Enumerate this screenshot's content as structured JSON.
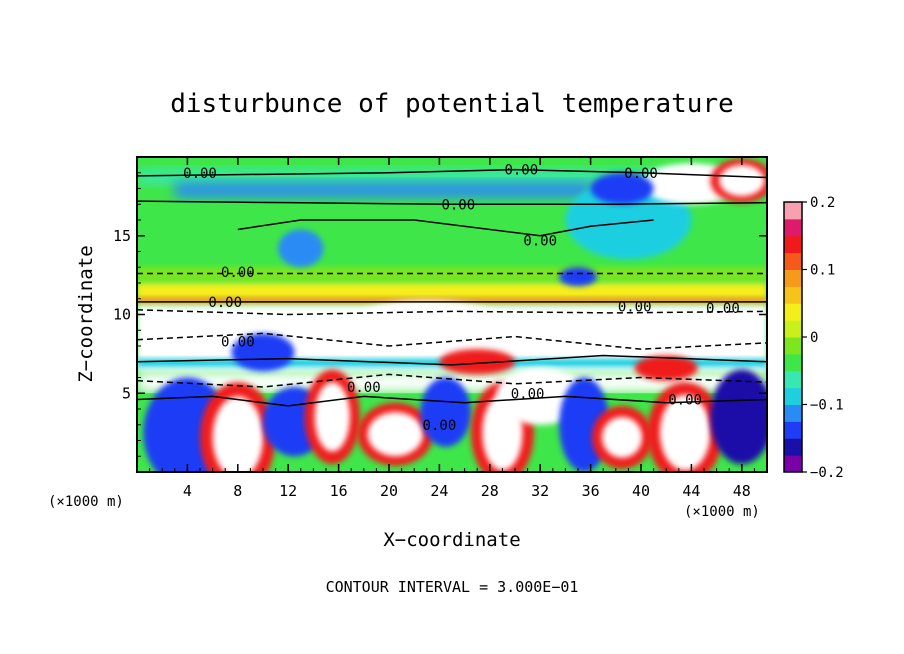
{
  "chart_data": {
    "type": "heatmap",
    "title": "disturbunce of potential temperature",
    "xlabel": "X−coordinate",
    "ylabel": "Z−coordinate",
    "x_unit_label": "(×1000 m)",
    "z_unit_label": "(×1000 m)",
    "xlim": [
      0,
      50
    ],
    "ylim": [
      0,
      20
    ],
    "x_ticks": [
      4,
      8,
      12,
      16,
      20,
      24,
      28,
      32,
      36,
      40,
      44,
      48
    ],
    "y_ticks": [
      5,
      10,
      15
    ],
    "colorbar": {
      "range": [
        -0.2,
        0.2
      ],
      "tick_values": [
        0.2,
        0.1,
        0,
        -0.1,
        -0.2
      ],
      "tick_labels": [
        "0.2",
        "0.1",
        "0",
        "−0.1",
        "−0.2"
      ],
      "colors": [
        "#7a00a8",
        "#1a0fa8",
        "#1f3df5",
        "#2a8bf5",
        "#1fcfe0",
        "#38e8b0",
        "#3fe64a",
        "#7de61f",
        "#c8f01a",
        "#f4ef1a",
        "#f5c31a",
        "#f59a1a",
        "#f55a1a",
        "#f01a1a",
        "#e01a6a",
        "#f7a0b0"
      ]
    },
    "contour_labels": [
      "0.00",
      "0.00",
      "0.00",
      "0.00",
      "0.00",
      "0.00",
      "0.00",
      "0.00",
      "0.00",
      "0.00",
      "0.00",
      "0.00",
      "0.00",
      "0.00"
    ],
    "contour_interval_text": "CONTOUR INTERVAL = 3.000E−01"
  }
}
